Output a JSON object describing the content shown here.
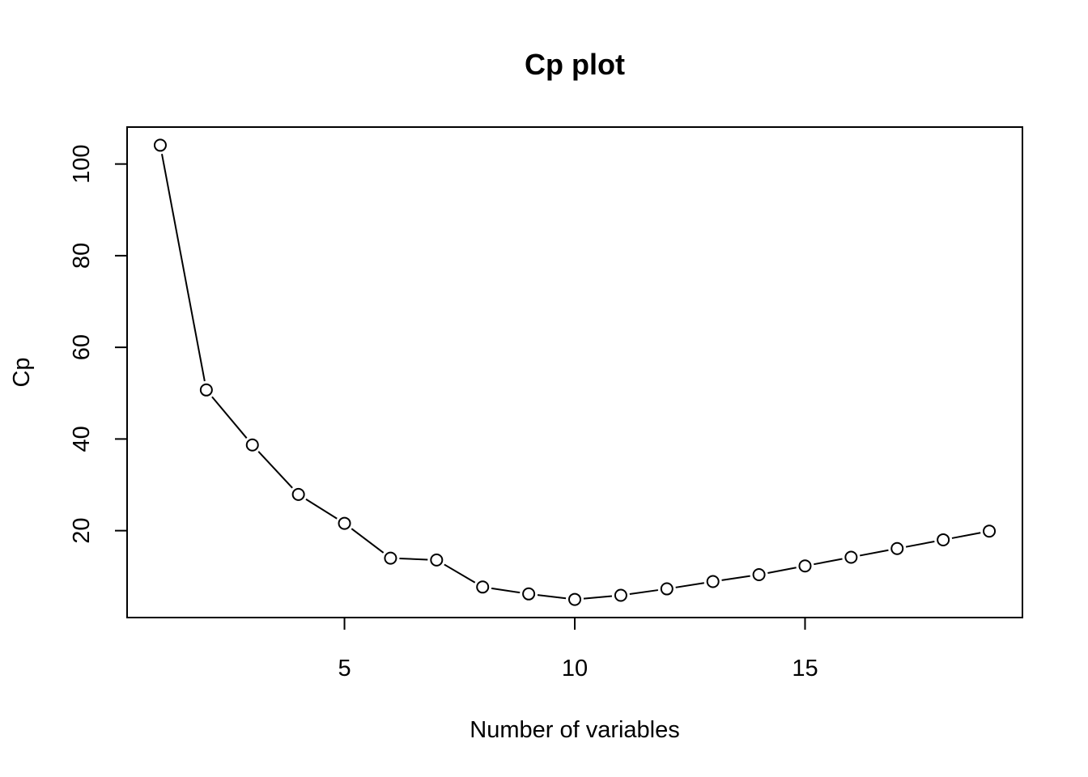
{
  "chart_data": {
    "type": "line",
    "title": "Cp plot",
    "xlabel": "Number of variables",
    "ylabel": "Cp",
    "x": [
      1,
      2,
      3,
      4,
      5,
      6,
      7,
      8,
      9,
      10,
      11,
      12,
      13,
      14,
      15,
      16,
      17,
      18,
      19
    ],
    "series": [
      {
        "values": [
          104.1,
          50.7,
          38.7,
          27.9,
          21.6,
          14.0,
          13.6,
          7.7,
          6.2,
          5.0,
          5.9,
          7.3,
          8.9,
          10.4,
          12.3,
          14.2,
          16.1,
          18.0,
          19.9
        ]
      }
    ],
    "xlim": [
      0.28,
      19.72
    ],
    "ylim": [
      1.04,
      108.06
    ],
    "xticks": [
      5,
      10,
      15
    ],
    "yticks": [
      20,
      40,
      60,
      80,
      100
    ],
    "grid": false,
    "legend": "none",
    "marker": "open-circle",
    "line_style": "line-with-gaps-at-points",
    "line_color": "#000000"
  }
}
